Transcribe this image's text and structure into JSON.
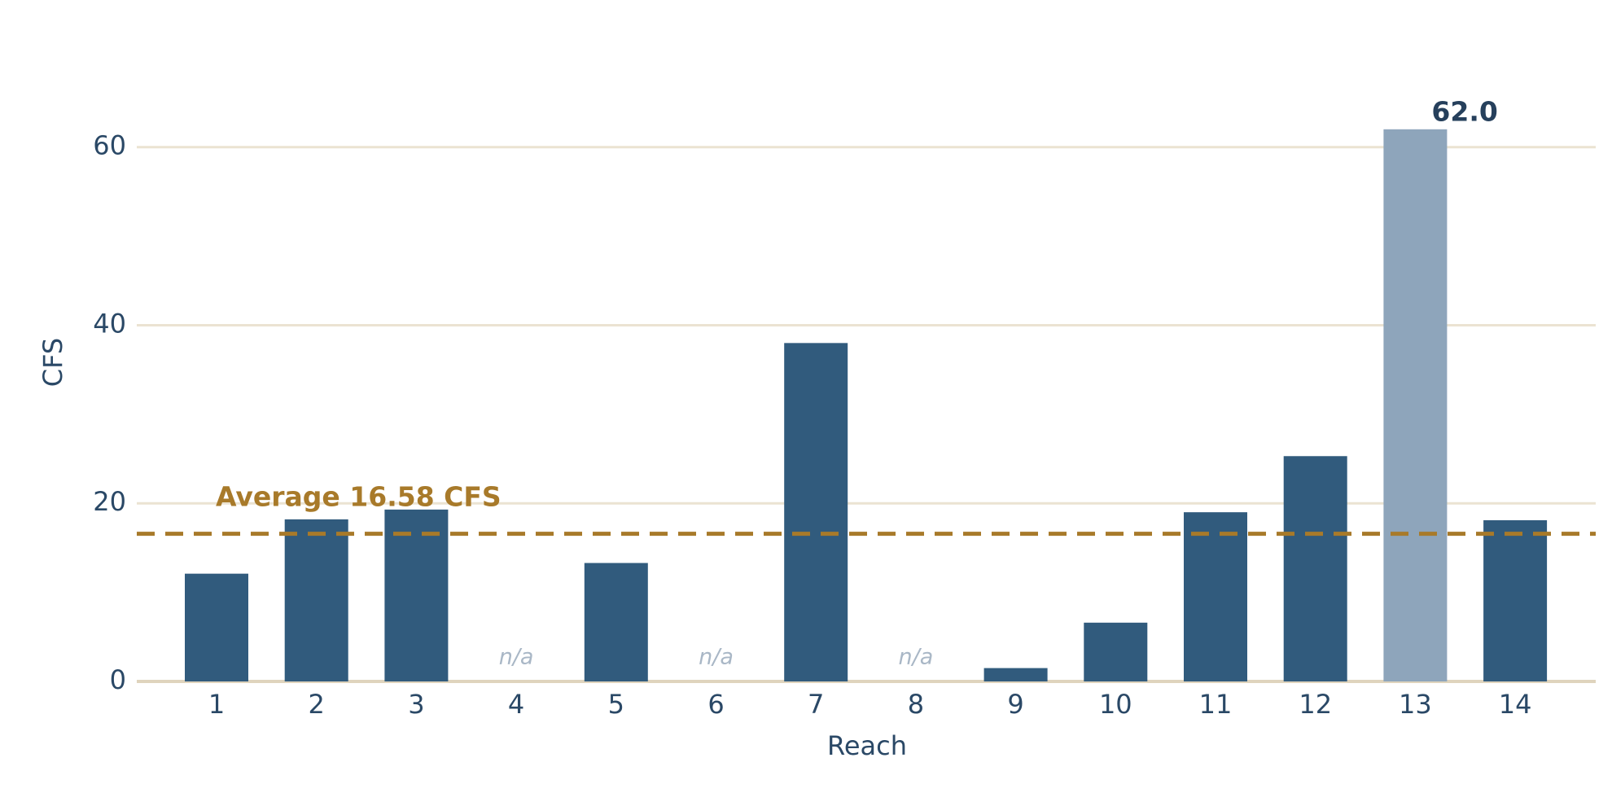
{
  "chart_data": {
    "type": "bar",
    "x_label": "Reach",
    "y_label": "CFS",
    "categories": [
      "1",
      "2",
      "3",
      "4",
      "5",
      "6",
      "7",
      "8",
      "9",
      "10",
      "11",
      "12",
      "13",
      "14"
    ],
    "values": [
      12.1,
      18.2,
      19.3,
      null,
      13.3,
      null,
      38.0,
      null,
      1.5,
      6.6,
      19.0,
      25.3,
      62.0,
      18.1
    ],
    "value_labels": [
      null,
      null,
      null,
      "n/a",
      null,
      "n/a",
      null,
      "n/a",
      null,
      null,
      null,
      null,
      "62.0",
      null
    ],
    "colors": [
      "#315b7d",
      "#315b7d",
      "#315b7d",
      "#315b7d",
      "#315b7d",
      "#315b7d",
      "#315b7d",
      "#315b7d",
      "#315b7d",
      "#315b7d",
      "#315b7d",
      "#315b7d",
      "#8ea5bb",
      "#315b7d"
    ],
    "average": 16.58,
    "average_label": "Average 16.58 CFS",
    "average_color": "#a87a2a",
    "ylim": [
      0,
      65
    ],
    "yticks": [
      0,
      20,
      40,
      60
    ],
    "grid": true
  }
}
